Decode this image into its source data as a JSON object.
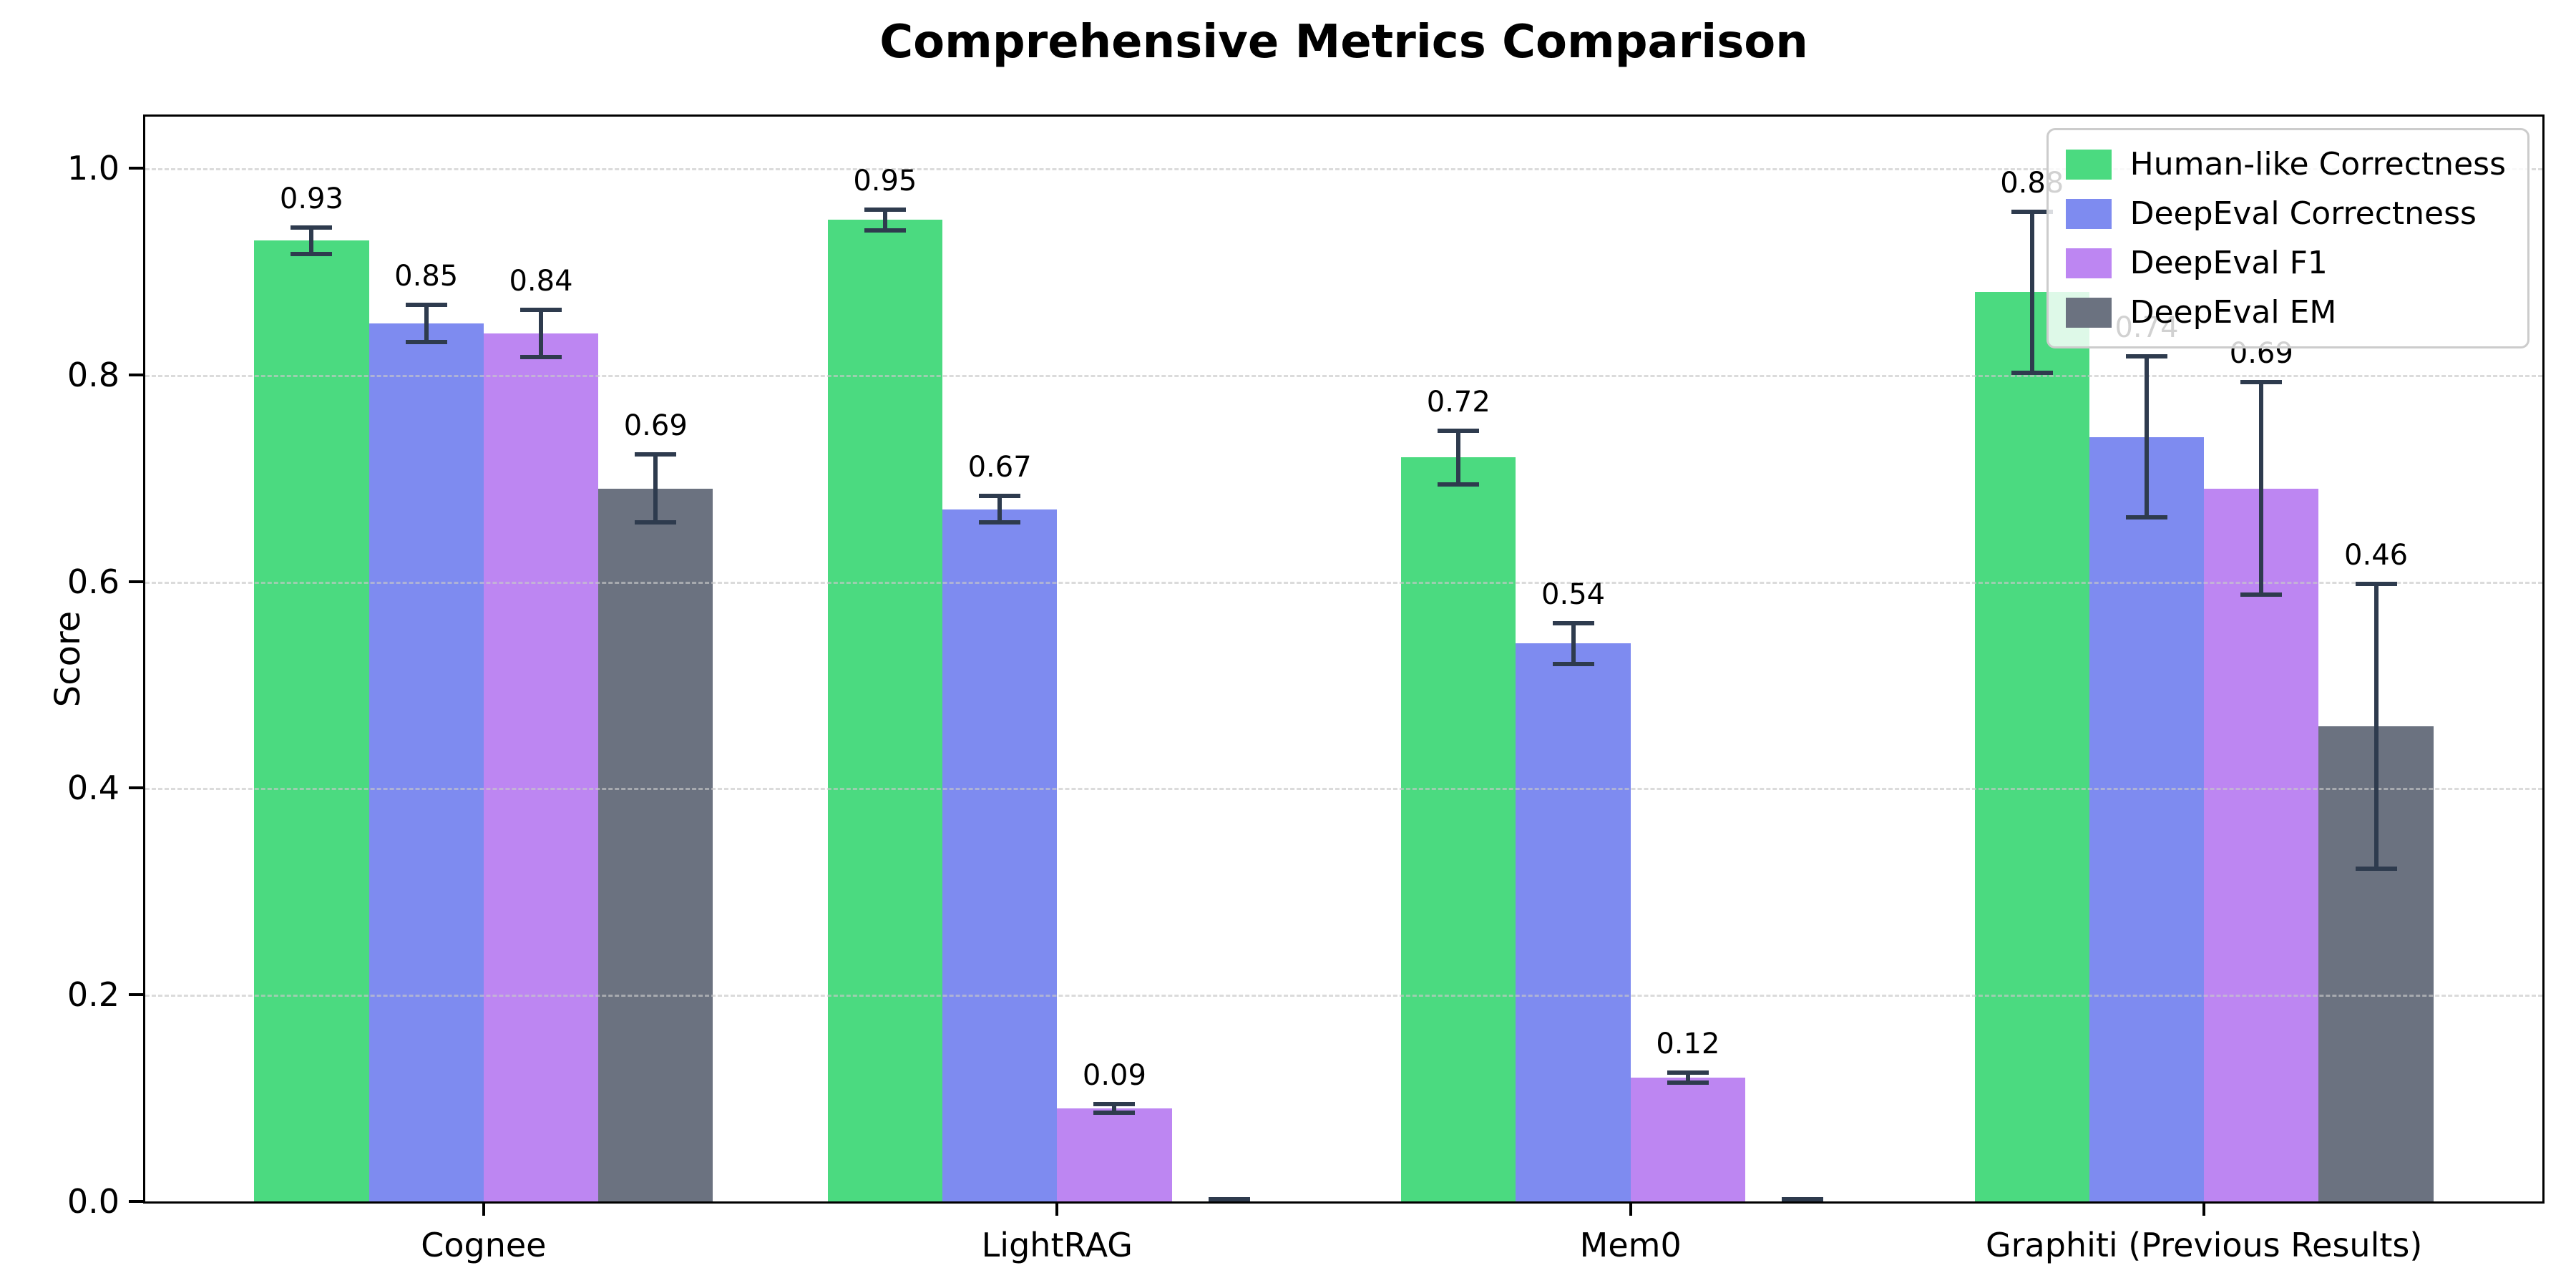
{
  "chart_data": {
    "type": "bar",
    "title": "Comprehensive Metrics Comparison",
    "ylabel": "Score",
    "xlabel": "",
    "categories": [
      "Cognee",
      "LightRAG",
      "Mem0",
      "Graphiti (Previous Results)"
    ],
    "series": [
      {
        "name": "Human-like Correctness",
        "color": "#4bda80",
        "values": [
          0.93,
          0.95,
          0.72,
          0.88
        ],
        "errors": [
          0.015,
          0.012,
          0.028,
          0.08
        ],
        "bar_labels": [
          "0.93",
          "0.95",
          "0.72",
          "0.88"
        ]
      },
      {
        "name": "DeepEval Correctness",
        "color": "#7e8bf0",
        "values": [
          0.85,
          0.67,
          0.54,
          0.74
        ],
        "errors": [
          0.02,
          0.015,
          0.022,
          0.08
        ],
        "bar_labels": [
          "0.85",
          "0.67",
          "0.54",
          "0.74"
        ]
      },
      {
        "name": "DeepEval F1",
        "color": "#bd86f2",
        "values": [
          0.84,
          0.09,
          0.12,
          0.69
        ],
        "errors": [
          0.025,
          0.006,
          0.007,
          0.105
        ],
        "bar_labels": [
          "0.84",
          "0.09",
          "0.12",
          "0.69"
        ]
      },
      {
        "name": "DeepEval EM",
        "color": "#6b7280",
        "values": [
          0.69,
          0.0,
          0.0,
          0.46
        ],
        "errors": [
          0.035,
          0.004,
          0.004,
          0.14
        ],
        "bar_labels": [
          "0.69",
          "",
          "",
          "0.46"
        ]
      }
    ],
    "ytick_labels": [
      "0.0",
      "0.2",
      "0.4",
      "0.6",
      "0.8",
      "1.0"
    ],
    "ylim": [
      0,
      1.05
    ],
    "grid": "horizontal-dashed",
    "legend_position": "upper-right",
    "colors": {
      "error_bar": "#2e3b4e",
      "gridline": "#d9d9d9",
      "axis": "#000000",
      "background": "#ffffff"
    }
  }
}
